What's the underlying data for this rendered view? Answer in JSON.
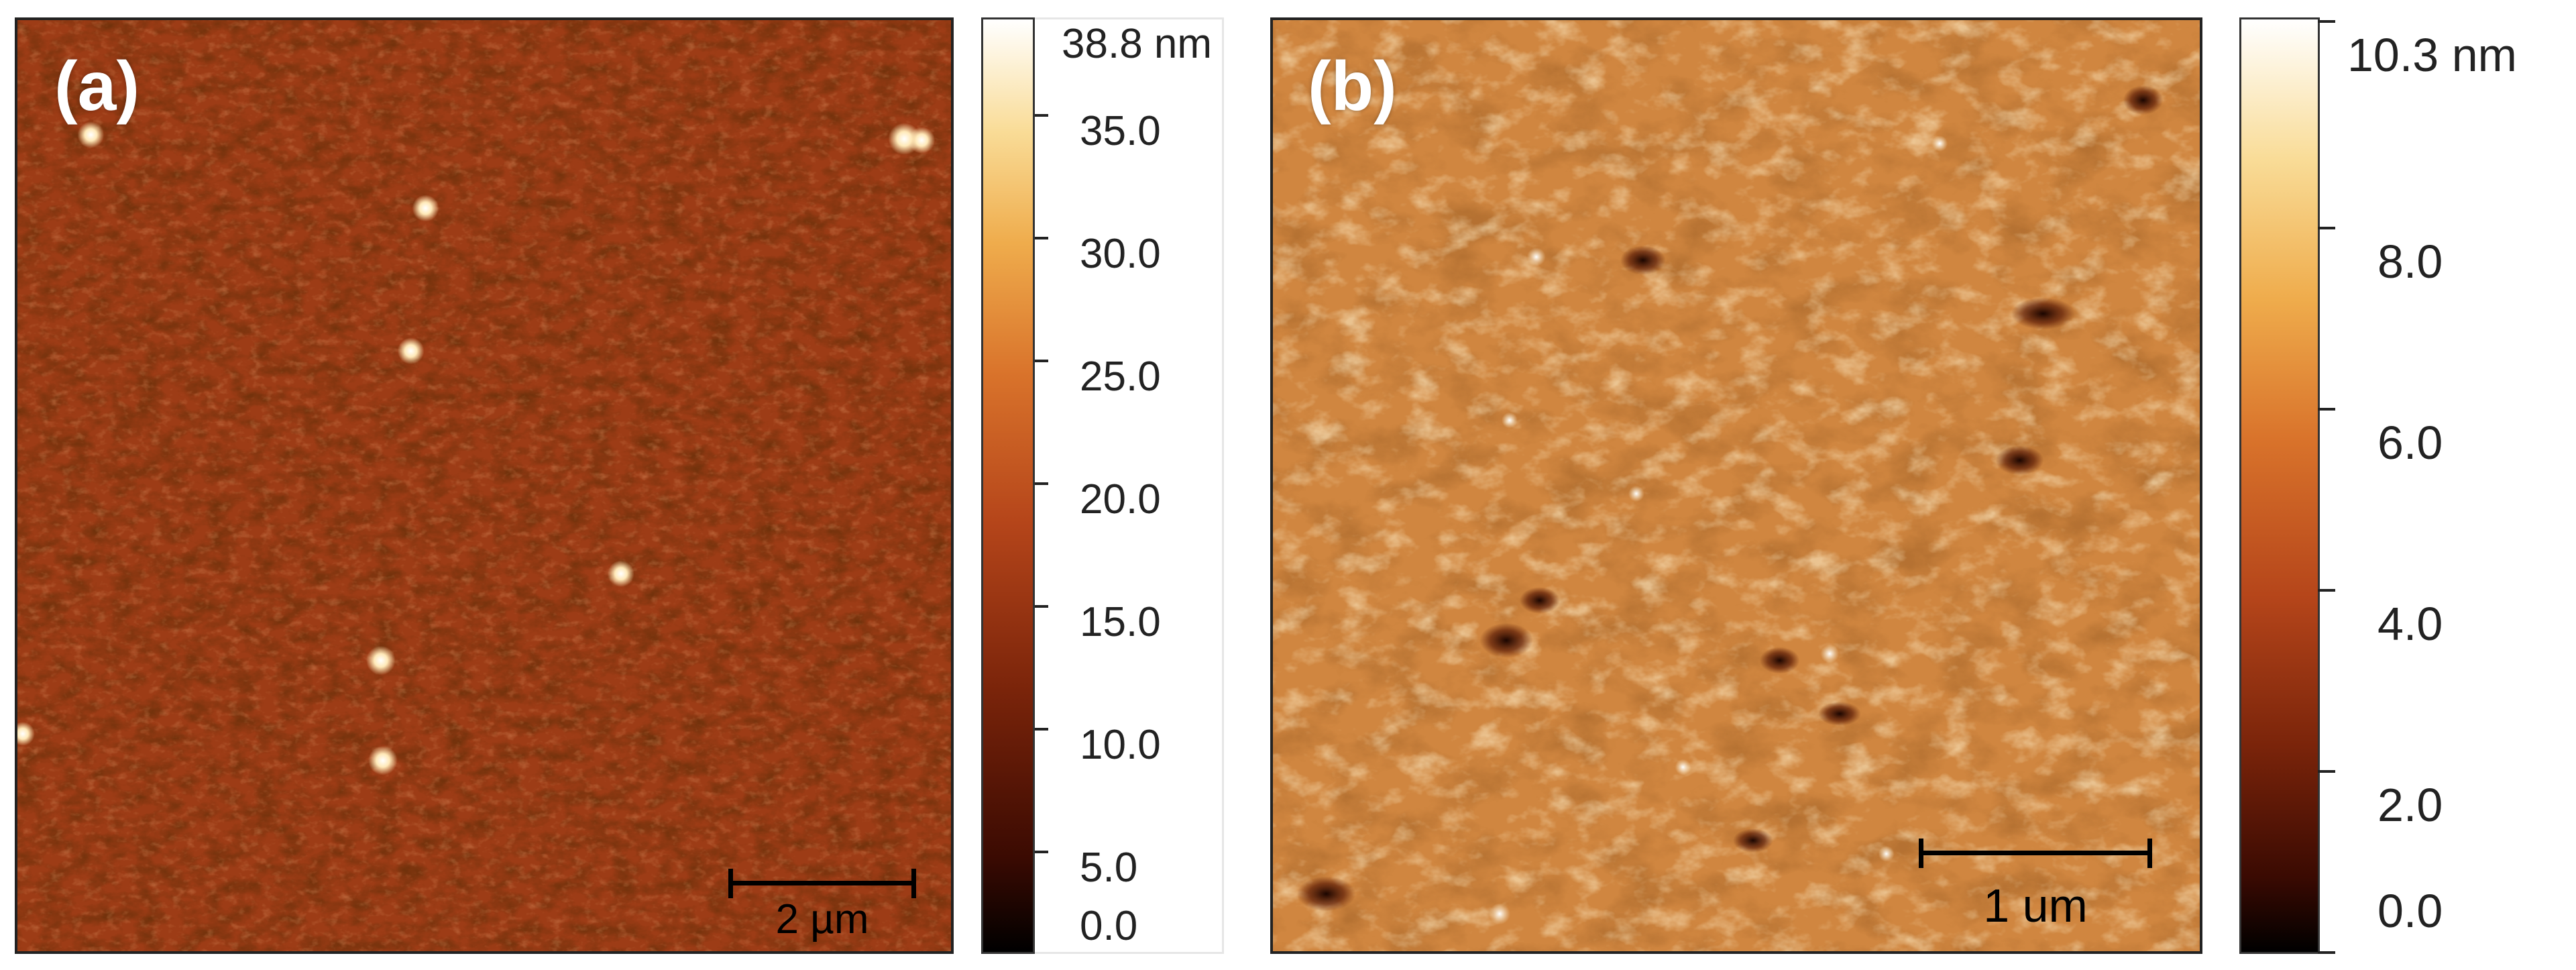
{
  "panels": [
    {
      "label": "(a)",
      "scale_bar": "2 µm",
      "colorbar": {
        "max_label": "38.8 nm",
        "ticks": [
          "35.0",
          "30.0",
          "25.0",
          "20.0",
          "15.0",
          "10.0",
          "5.0",
          "0.0"
        ]
      },
      "colors": {
        "base": "#9a3a14",
        "low": "#000000",
        "mid": "#c0501b",
        "high": "#ffffff"
      }
    },
    {
      "label": "(b)",
      "scale_bar": "1 um",
      "colorbar": {
        "max_label": "10.3 nm",
        "ticks": [
          "8.0",
          "6.0",
          "4.0",
          "2.0",
          "0.0"
        ]
      },
      "colors": {
        "base": "#d48a3e",
        "low": "#000000",
        "mid": "#c0501b",
        "high": "#ffffff"
      }
    }
  ]
}
